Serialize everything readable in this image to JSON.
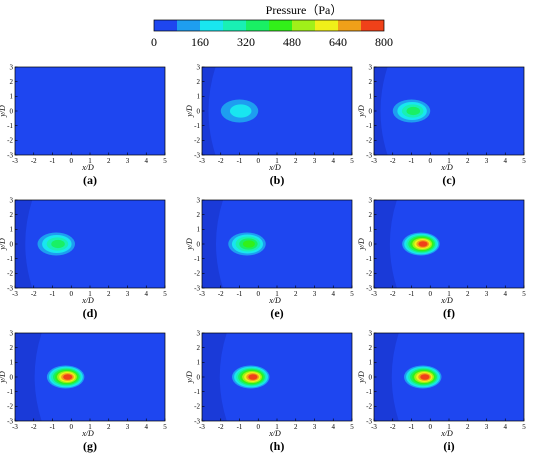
{
  "colorbar": {
    "title": "Pressure（Pa）",
    "ticks": [
      0,
      160,
      320,
      480,
      640,
      800
    ],
    "levels": [
      0,
      80,
      160,
      240,
      320,
      400,
      480,
      560,
      640,
      720,
      800
    ],
    "colors": [
      "#1e46f0",
      "#1e9ef0",
      "#19e6f0",
      "#19f0b4",
      "#19f064",
      "#32f019",
      "#a0f019",
      "#f0f019",
      "#f0a019",
      "#f04119"
    ]
  },
  "chart_data": {
    "type": "contour",
    "quantity": "Pressure",
    "unit": "Pa",
    "xlabel": "x/D",
    "ylabel": "y/D",
    "xlim": [
      -3,
      5
    ],
    "ylim": [
      -3,
      3
    ],
    "xticks": [
      -3,
      -2,
      -1,
      0,
      1,
      2,
      3,
      4,
      5
    ],
    "yticks": [
      -3,
      -2,
      -1,
      0,
      1,
      2,
      3
    ],
    "panels": [
      {
        "label": "(a)",
        "peak_pa": 0,
        "peak_center": null
      },
      {
        "label": "(b)",
        "peak_pa": 160,
        "peak_center": [
          -1.0,
          0.0
        ]
      },
      {
        "label": "(c)",
        "peak_pa": 320,
        "peak_center": [
          -1.0,
          0.0
        ]
      },
      {
        "label": "(d)",
        "peak_pa": 320,
        "peak_center": [
          -0.8,
          0.0
        ]
      },
      {
        "label": "(e)",
        "peak_pa": 400,
        "peak_center": [
          -0.6,
          0.0
        ]
      },
      {
        "label": "(f)",
        "peak_pa": 720,
        "peak_center": [
          -0.5,
          0.0
        ]
      },
      {
        "label": "(g)",
        "peak_pa": 800,
        "peak_center": [
          -0.3,
          0.0
        ]
      },
      {
        "label": "(h)",
        "peak_pa": 800,
        "peak_center": [
          -0.4,
          0.0
        ]
      },
      {
        "label": "(i)",
        "peak_pa": 800,
        "peak_center": [
          -0.4,
          0.0
        ]
      }
    ]
  }
}
